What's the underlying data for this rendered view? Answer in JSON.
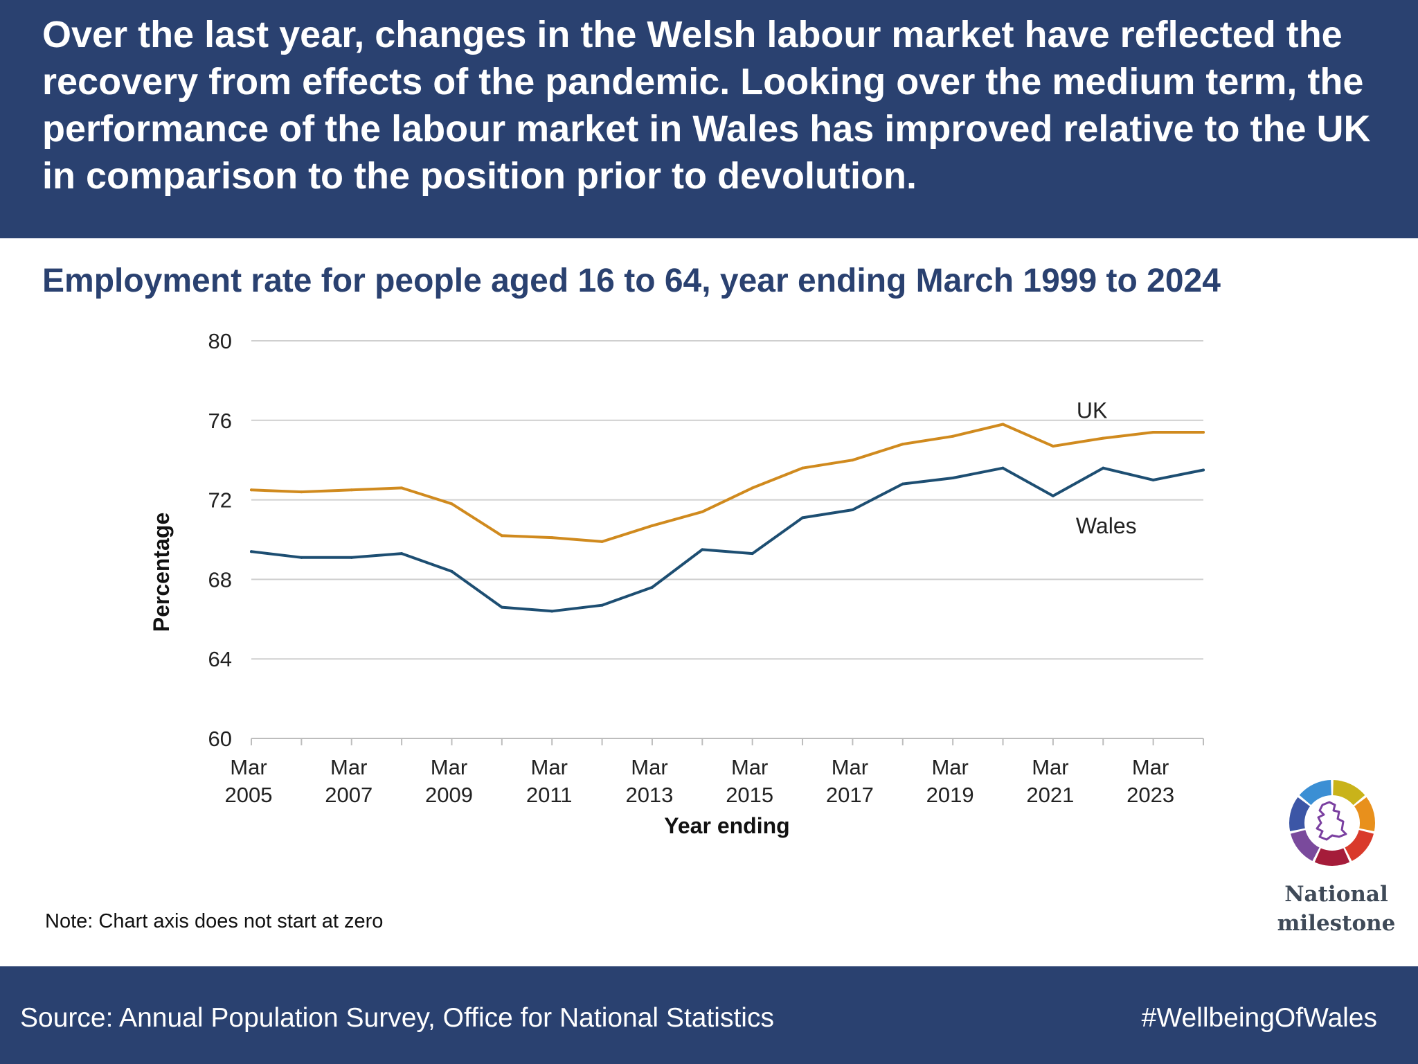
{
  "header": {
    "headline": "Over the last year, changes in the Welsh labour market have reflected the recovery from effects of the pandemic. Looking over the medium term, the performance of the labour market in Wales has improved relative to the UK in comparison to the position prior to devolution."
  },
  "chart_title": "Employment rate for people aged 16 to 64, year ending March 1999 to 2024",
  "chart_data": {
    "type": "line",
    "ylabel": "Percentage",
    "xlabel": "Year ending",
    "ylim": [
      60,
      80
    ],
    "yticks": [
      "60",
      "64",
      "68",
      "72",
      "76",
      "80"
    ],
    "xtick_labels": [
      [
        "Mar",
        "2005"
      ],
      [
        "Mar",
        "2007"
      ],
      [
        "Mar",
        "2009"
      ],
      [
        "Mar",
        "2011"
      ],
      [
        "Mar",
        "2013"
      ],
      [
        "Mar",
        "2015"
      ],
      [
        "Mar",
        "2017"
      ],
      [
        "Mar",
        "2019"
      ],
      [
        "Mar",
        "2021"
      ],
      [
        "Mar",
        "2023"
      ]
    ],
    "x": [
      "Mar 2005",
      "Mar 2006",
      "Mar 2007",
      "Mar 2008",
      "Mar 2009",
      "Mar 2010",
      "Mar 2011",
      "Mar 2012",
      "Mar 2013",
      "Mar 2014",
      "Mar 2015",
      "Mar 2016",
      "Mar 2017",
      "Mar 2018",
      "Mar 2019",
      "Mar 2020",
      "Mar 2021",
      "Mar 2022",
      "Mar 2023",
      "Mar 2024"
    ],
    "grid": true,
    "series": [
      {
        "name": "UK",
        "color": "#d08a1e",
        "values": [
          72.5,
          72.4,
          72.5,
          72.6,
          71.8,
          70.2,
          70.1,
          69.9,
          70.7,
          71.4,
          72.6,
          73.6,
          74.0,
          74.8,
          75.2,
          75.8,
          74.7,
          75.1,
          75.4,
          75.4
        ]
      },
      {
        "name": "Wales",
        "color": "#1d4e72",
        "values": [
          69.4,
          69.1,
          69.1,
          69.3,
          68.4,
          66.6,
          66.4,
          66.7,
          67.6,
          69.5,
          69.3,
          71.1,
          71.5,
          72.8,
          73.1,
          73.6,
          72.2,
          73.6,
          73.0,
          73.5
        ]
      }
    ]
  },
  "note": "Note: Chart axis does not start at zero",
  "milestone": {
    "label_line1": "National",
    "label_line2": "milestone",
    "ring_colors": [
      "#c9b31a",
      "#e8901c",
      "#d93a2b",
      "#a51c3a",
      "#7a4a9c",
      "#3c56a6",
      "#3b8fd4"
    ]
  },
  "footer": {
    "source": "Source: Annual Population Survey, Office for National Statistics",
    "hashtag": "#WellbeingOfWales"
  }
}
